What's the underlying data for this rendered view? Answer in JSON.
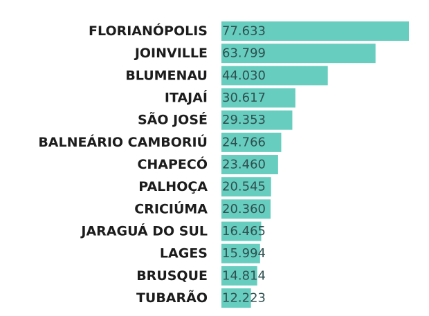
{
  "chart_data": {
    "type": "bar",
    "orientation": "horizontal",
    "title": "",
    "xlabel": "",
    "ylabel": "",
    "categories": [
      "FLORIANÓPOLIS",
      "JOINVILLE",
      "BLUMENAU",
      "ITAJAÍ",
      "SÃO JOSÉ",
      "BALNEÁRIO CAMBORIÚ",
      "CHAPECÓ",
      "PALHOÇA",
      "CRICIÚMA",
      "JARAGUÁ DO SUL",
      "LAGES",
      "BRUSQUE",
      "TUBARÃO"
    ],
    "values": [
      77633,
      63799,
      44030,
      30617,
      29353,
      24766,
      23460,
      20545,
      20360,
      16465,
      15994,
      14814,
      12223
    ],
    "value_labels": [
      "77.633",
      "63.799",
      "44.030",
      "30.617",
      "29.353",
      "24.766",
      "23.460",
      "20.545",
      "20.360",
      "16.465",
      "15.994",
      "14.814",
      "12.223"
    ],
    "xlim": [
      0,
      77633
    ],
    "bar_color": "#66cdbf",
    "grid": false,
    "legend": "none"
  }
}
